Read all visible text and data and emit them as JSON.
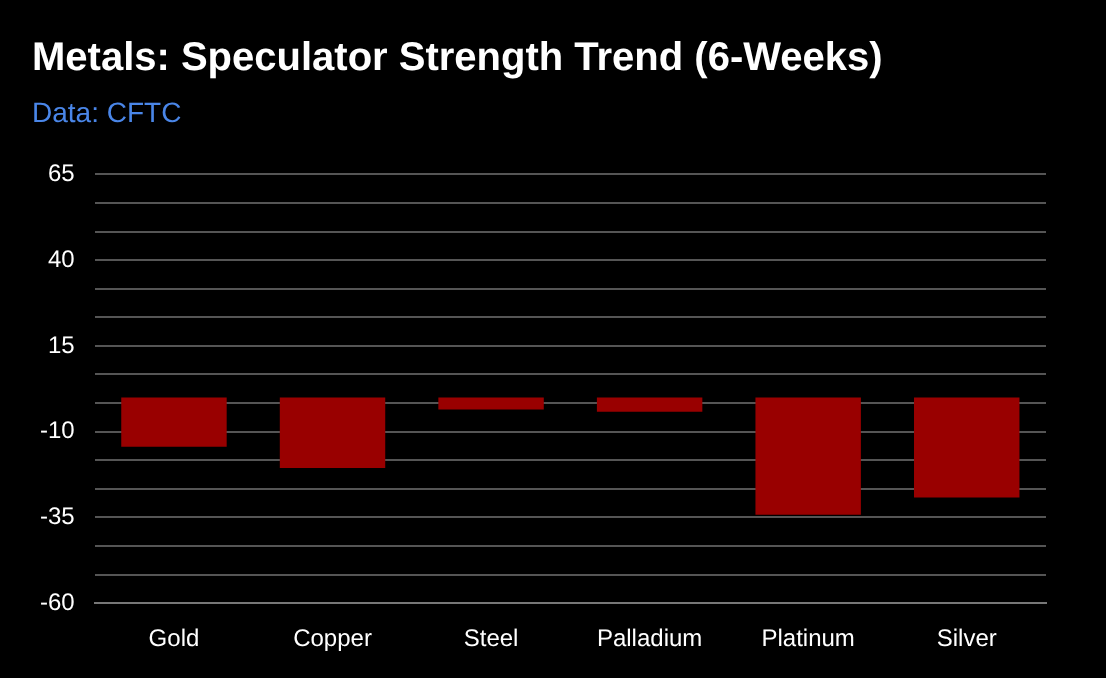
{
  "chart_data": {
    "type": "bar",
    "title": "Metals: Speculator Strength Trend (6-Weeks)",
    "subtitle": "Data: CFTC",
    "categories": [
      "Gold",
      "Copper",
      "Steel",
      "Palladium",
      "Platinum",
      "Silver"
    ],
    "values": [
      -14.4,
      -20.6,
      -3.5,
      -4.2,
      -34.2,
      -29.2
    ],
    "color": "#990000",
    "ylim": [
      -60,
      65
    ],
    "yticks": [
      -60,
      {
        "value": -51.67,
        "label": null
      },
      {
        "value": -43.33,
        "label": null
      },
      -35,
      {
        "value": -26.67,
        "label": null
      },
      {
        "value": -18.33,
        "label": null
      },
      -10,
      {
        "value": -1.67,
        "label": null
      },
      {
        "value": 6.67,
        "label": null
      },
      15,
      {
        "value": 23.33,
        "label": null
      },
      {
        "value": 31.67,
        "label": null
      },
      40,
      {
        "value": 48.33,
        "label": null
      },
      {
        "value": 56.67,
        "label": null
      },
      65
    ],
    "grid": "y",
    "legend": false
  }
}
